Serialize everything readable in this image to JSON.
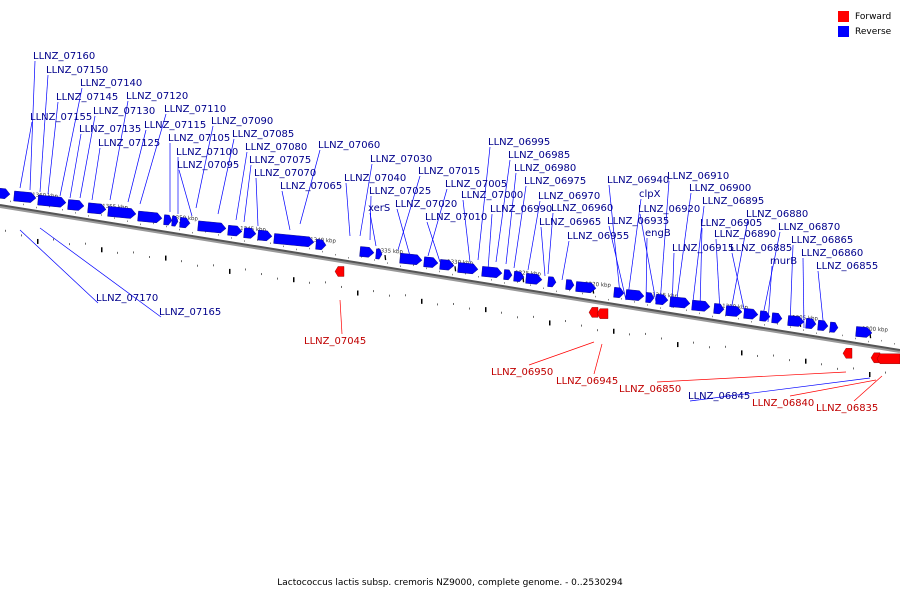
{
  "legend": {
    "forward": {
      "label": "Forward",
      "color": "#ff0000"
    },
    "reverse": {
      "label": "Reverse",
      "color": "#0000ff"
    }
  },
  "footer": "Lactococcus lactis subsp. cremoris NZ9000, complete genome. - 0..2530294",
  "scale_labels": [
    "1360 kbp",
    "1355 kbp",
    "1350 kbp",
    "1345 kbp",
    "1340 kbp",
    "1335 kbp",
    "1330 kbp",
    "1325 kbp",
    "1320 kbp",
    "1315 kbp",
    "1310 kbp",
    "1305 kbp",
    "1300 kbp"
  ],
  "genes": [
    {
      "label": "LLNZ_07160",
      "strand": "reverse"
    },
    {
      "label": "LLNZ_07150",
      "strand": "reverse"
    },
    {
      "label": "LLNZ_07140",
      "strand": "reverse"
    },
    {
      "label": "LLNZ_07145",
      "strand": "reverse"
    },
    {
      "label": "LLNZ_07120",
      "strand": "reverse"
    },
    {
      "label": "LLNZ_07155",
      "strand": "reverse"
    },
    {
      "label": "LLNZ_07130",
      "strand": "reverse"
    },
    {
      "label": "LLNZ_07110",
      "strand": "reverse"
    },
    {
      "label": "LLNZ_07135",
      "strand": "reverse"
    },
    {
      "label": "LLNZ_07115",
      "strand": "reverse"
    },
    {
      "label": "LLNZ_07090",
      "strand": "reverse"
    },
    {
      "label": "LLNZ_07125",
      "strand": "reverse"
    },
    {
      "label": "LLNZ_07105",
      "strand": "reverse"
    },
    {
      "label": "LLNZ_07085",
      "strand": "reverse"
    },
    {
      "label": "LLNZ_07100",
      "strand": "reverse"
    },
    {
      "label": "LLNZ_07080",
      "strand": "reverse"
    },
    {
      "label": "LLNZ_07060",
      "strand": "reverse"
    },
    {
      "label": "LLNZ_07095",
      "strand": "reverse"
    },
    {
      "label": "LLNZ_07075",
      "strand": "reverse"
    },
    {
      "label": "LLNZ_07070",
      "strand": "reverse"
    },
    {
      "label": "LLNZ_07065",
      "strand": "reverse"
    },
    {
      "label": "LLNZ_07030",
      "strand": "reverse"
    },
    {
      "label": "LLNZ_07040",
      "strand": "reverse"
    },
    {
      "label": "LLNZ_07025",
      "strand": "reverse"
    },
    {
      "label": "xerS",
      "strand": "reverse"
    },
    {
      "label": "LLNZ_07015",
      "strand": "reverse"
    },
    {
      "label": "LLNZ_07005",
      "strand": "reverse"
    },
    {
      "label": "LLNZ_07020",
      "strand": "reverse"
    },
    {
      "label": "LLNZ_07010",
      "strand": "reverse"
    },
    {
      "label": "LLNZ_07000",
      "strand": "reverse"
    },
    {
      "label": "LLNZ_06995",
      "strand": "reverse"
    },
    {
      "label": "LLNZ_06985",
      "strand": "reverse"
    },
    {
      "label": "LLNZ_06980",
      "strand": "reverse"
    },
    {
      "label": "LLNZ_06975",
      "strand": "reverse"
    },
    {
      "label": "LLNZ_06990",
      "strand": "reverse"
    },
    {
      "label": "LLNZ_06970",
      "strand": "reverse"
    },
    {
      "label": "LLNZ_06960",
      "strand": "reverse"
    },
    {
      "label": "LLNZ_06965",
      "strand": "reverse"
    },
    {
      "label": "LLNZ_06955",
      "strand": "reverse"
    },
    {
      "label": "LLNZ_06940",
      "strand": "reverse"
    },
    {
      "label": "clpX",
      "strand": "reverse"
    },
    {
      "label": "LLNZ_06935",
      "strand": "reverse"
    },
    {
      "label": "engB",
      "strand": "reverse"
    },
    {
      "label": "LLNZ_06920",
      "strand": "reverse"
    },
    {
      "label": "LLNZ_06910",
      "strand": "reverse"
    },
    {
      "label": "LLNZ_06900",
      "strand": "reverse"
    },
    {
      "label": "LLNZ_06915",
      "strand": "reverse"
    },
    {
      "label": "LLNZ_06905",
      "strand": "reverse"
    },
    {
      "label": "LLNZ_06895",
      "strand": "reverse"
    },
    {
      "label": "LLNZ_06890",
      "strand": "reverse"
    },
    {
      "label": "LLNZ_06880",
      "strand": "reverse"
    },
    {
      "label": "LLNZ_06885",
      "strand": "reverse"
    },
    {
      "label": "LLNZ_06870",
      "strand": "reverse"
    },
    {
      "label": "murB",
      "strand": "reverse"
    },
    {
      "label": "LLNZ_06865",
      "strand": "reverse"
    },
    {
      "label": "LLNZ_06860",
      "strand": "reverse"
    },
    {
      "label": "LLNZ_06855",
      "strand": "reverse"
    },
    {
      "label": "LLNZ_07170",
      "strand": "reverse"
    },
    {
      "label": "LLNZ_07165",
      "strand": "reverse"
    },
    {
      "label": "LLNZ_07045",
      "strand": "forward"
    },
    {
      "label": "LLNZ_06950",
      "strand": "forward"
    },
    {
      "label": "LLNZ_06945",
      "strand": "forward"
    },
    {
      "label": "LLNZ_06850",
      "strand": "forward"
    },
    {
      "label": "LLNZ_06845",
      "strand": "reverse"
    },
    {
      "label": "LLNZ_06840",
      "strand": "forward"
    },
    {
      "label": "LLNZ_06835",
      "strand": "forward"
    }
  ]
}
